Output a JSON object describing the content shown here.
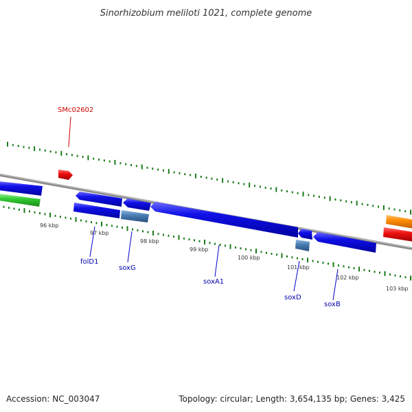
{
  "header": {
    "title": "Sinorhizobium meliloti 1021, complete genome"
  },
  "footer": {
    "accession": "Accession: NC_003047",
    "topology": "Topology: circular; Length: 3,654,135 bp; Genes: 3,425"
  },
  "scale": {
    "ticks": [
      {
        "label": "96 kbp"
      },
      {
        "label": "97 kbp"
      },
      {
        "label": "98 kbp"
      },
      {
        "label": "99 kbp"
      },
      {
        "label": "100 kbp"
      },
      {
        "label": "101 kbp"
      },
      {
        "label": "102 kbp"
      },
      {
        "label": "103 kbp"
      }
    ]
  },
  "genes": [
    {
      "name": "SMc02602",
      "color": "#cc0000"
    },
    {
      "name": "folD1",
      "color": "#0000cc"
    },
    {
      "name": "soxG",
      "color": "#0000cc"
    },
    {
      "name": "soxA1",
      "color": "#0000cc"
    },
    {
      "name": "soxD",
      "color": "#0000cc"
    },
    {
      "name": "soxB",
      "color": "#0000cc"
    }
  ],
  "colors": {
    "backbone": "#7f7f7f",
    "tick": "#1a7a1a",
    "cds_blue": "#1010e8",
    "cds_steel": "#4a7fb5",
    "cds_red": "#ee1111",
    "cds_green": "#33cc33",
    "cds_orange": "#ff8c00"
  }
}
